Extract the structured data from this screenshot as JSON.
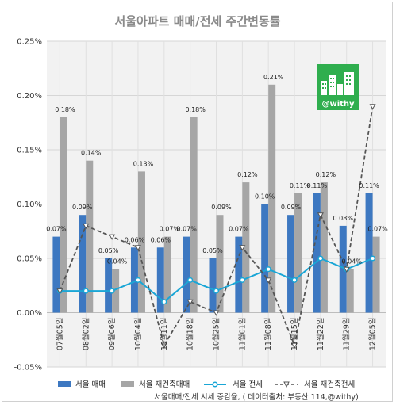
{
  "chart_data": {
    "type": "bar",
    "title": "서울아파트 매매/전세 주간변동률",
    "categories": [
      "07월05일",
      "08월02일",
      "09월06일",
      "10월04일",
      "10월11일",
      "10월18일",
      "10월25일",
      "11월01일",
      "11월08일",
      "11월15일",
      "11월22일",
      "11월29일",
      "12월05일"
    ],
    "ylim": [
      -0.05,
      0.25
    ],
    "yticks": [
      "-0.05%",
      "0.00%",
      "0.05%",
      "0.10%",
      "0.15%",
      "0.20%",
      "0.25%"
    ],
    "grid": true,
    "legend_position": "bottom",
    "series": [
      {
        "name": "서울 매매",
        "kind": "bar",
        "color": "#3d78c1",
        "values": [
          0.07,
          0.09,
          0.05,
          0.06,
          0.06,
          0.07,
          0.05,
          0.07,
          0.1,
          0.09,
          0.11,
          0.08,
          0.11
        ],
        "labels": [
          "0.07%",
          "0.09%",
          "0.05%",
          "0.06%",
          "0.06%",
          "0.07%",
          "0.05%",
          "0.07%",
          "0.10%",
          "0.09%",
          "0.11%",
          "0.08%",
          "0.11%"
        ]
      },
      {
        "name": "서울 재건축매매",
        "kind": "bar",
        "color": "#a6a6a6",
        "values": [
          0.18,
          0.14,
          0.04,
          0.13,
          0.07,
          0.18,
          0.09,
          0.12,
          0.21,
          0.11,
          0.12,
          0.04,
          0.07
        ],
        "labels": [
          "0.18%",
          "0.14%",
          "0.04%",
          "0.13%",
          "0.07%",
          "0.18%",
          "0.09%",
          "0.12%",
          "0.21%",
          "0.11%",
          "0.12%",
          "0.04%",
          "0.07%"
        ]
      },
      {
        "name": "서울 전세",
        "kind": "line",
        "color": "#1aa6d6",
        "values": [
          0.02,
          0.02,
          0.02,
          0.03,
          0.01,
          0.03,
          0.02,
          0.03,
          0.04,
          0.03,
          0.05,
          0.04,
          0.05
        ]
      },
      {
        "name": "서울 재건축전세",
        "kind": "dashed-line",
        "color": "#555555",
        "values": [
          0.02,
          0.08,
          0.07,
          0.06,
          -0.03,
          0.01,
          0.0,
          0.06,
          0.03,
          -0.03,
          0.09,
          0.04,
          0.19
        ]
      }
    ],
    "logo": {
      "text": "@withy",
      "color": "#2fae4e"
    },
    "source": "서울매매/전세 시세 증감율, ( 데이터출처: 부동산 114,@withy)"
  }
}
